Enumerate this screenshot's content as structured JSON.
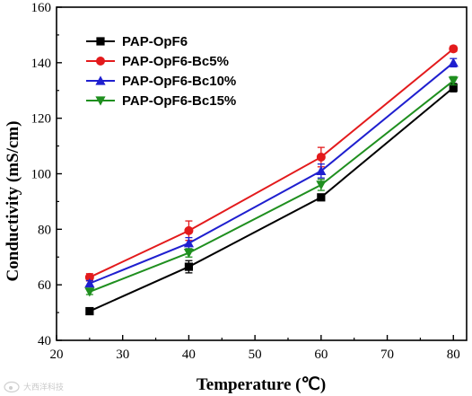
{
  "watermark": {
    "text": "大西洋科技",
    "icon": "weibo-logo-icon"
  },
  "chart_data": {
    "type": "line",
    "xlabel": "Temperature (℃)",
    "ylabel": "Conductivity (mS/cm)",
    "xlim": [
      20,
      82
    ],
    "ylim": [
      40,
      160
    ],
    "x_ticks": [
      20,
      30,
      40,
      50,
      60,
      70,
      80
    ],
    "y_ticks": [
      40,
      60,
      80,
      100,
      120,
      140,
      160
    ],
    "x_tick_labels": [
      "20",
      "30",
      "40",
      "50",
      "60",
      "70",
      "80"
    ],
    "y_tick_labels": [
      "40",
      "60",
      "80",
      "100",
      "120",
      "140",
      "160"
    ],
    "grid": false,
    "legend_position": "top-left",
    "x": [
      25,
      40,
      60,
      80
    ],
    "series": [
      {
        "name": "PAP-OpF6",
        "color": "#000000",
        "marker": "square",
        "values": [
          50.5,
          66.5,
          91.5,
          131
        ],
        "errors": [
          0.6,
          2.2,
          1.0,
          1.5
        ]
      },
      {
        "name": "PAP-OpF6-Bc5%",
        "color": "#e31a1c",
        "marker": "circle",
        "values": [
          62.7,
          79.5,
          106,
          145
        ],
        "errors": [
          1.3,
          3.5,
          3.5,
          1.0
        ]
      },
      {
        "name": "PAP-OpF6-Bc10%",
        "color": "#1f1fcf",
        "marker": "triangle-up",
        "values": [
          60.5,
          75,
          101,
          140
        ],
        "errors": [
          1.0,
          2.0,
          2.5,
          1.5
        ]
      },
      {
        "name": "PAP-OpF6-Bc15%",
        "color": "#1f8f1f",
        "marker": "triangle-down",
        "values": [
          57.5,
          71.5,
          96,
          133.5
        ],
        "errors": [
          1.0,
          1.5,
          2.0,
          1.5
        ]
      }
    ]
  }
}
